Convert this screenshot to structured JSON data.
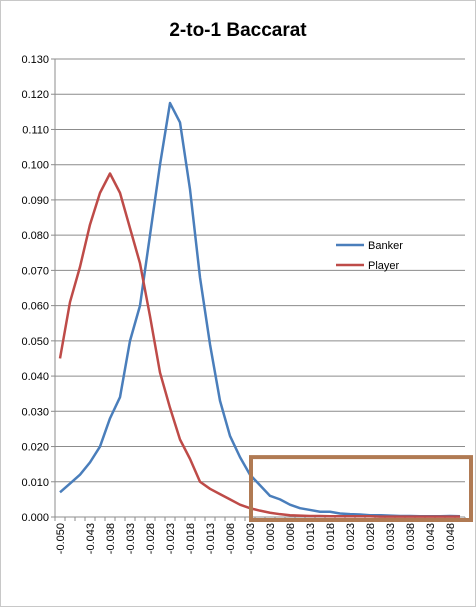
{
  "chart_data": {
    "type": "line",
    "title": "2-to-1 Baccarat",
    "xlabel": "",
    "ylabel": "",
    "ylim": [
      0,
      0.13
    ],
    "y_ticks": [
      "0.000",
      "0.010",
      "0.020",
      "0.030",
      "0.040",
      "0.050",
      "0.060",
      "0.070",
      "0.080",
      "0.090",
      "0.100",
      "0.110",
      "0.120",
      "0.130"
    ],
    "x": [
      "-0.050",
      "-0.048",
      "-0.045",
      "-0.043",
      "-0.040",
      "-0.038",
      "-0.035",
      "-0.033",
      "-0.030",
      "-0.028",
      "-0.025",
      "-0.023",
      "-0.020",
      "-0.018",
      "-0.015",
      "-0.013",
      "-0.010",
      "-0.008",
      "-0.005",
      "-0.003",
      "0.000",
      "0.003",
      "0.005",
      "0.008",
      "0.010",
      "0.013",
      "0.015",
      "0.018",
      "0.020",
      "0.023",
      "0.025",
      "0.028",
      "0.030",
      "0.033",
      "0.035",
      "0.038",
      "0.040",
      "0.043",
      "0.045",
      "0.048",
      "0.050"
    ],
    "x_tick_labels": [
      "-0.050",
      "-0.043",
      "-0.038",
      "-0.033",
      "-0.028",
      "-0.023",
      "-0.018",
      "-0.013",
      "-0.008",
      "-0.003",
      "0.003",
      "0.008",
      "0.013",
      "0.018",
      "0.023",
      "0.028",
      "0.033",
      "0.038",
      "0.043",
      "0.048"
    ],
    "grid": true,
    "legend_position": "right",
    "series": [
      {
        "name": "Banker",
        "color": "#4a7ebb",
        "values": [
          0.007,
          0.0095,
          0.012,
          0.0155,
          0.02,
          0.028,
          0.034,
          0.05,
          0.06,
          0.08,
          0.1,
          0.1175,
          0.112,
          0.093,
          0.068,
          0.049,
          0.033,
          0.023,
          0.017,
          0.012,
          0.009,
          0.006,
          0.005,
          0.0035,
          0.0025,
          0.002,
          0.0015,
          0.0015,
          0.001,
          0.0008,
          0.0007,
          0.0005,
          0.0005,
          0.0004,
          0.0003,
          0.0003,
          0.0002,
          0.0002,
          0.0002,
          0.0003,
          0.0002
        ]
      },
      {
        "name": "Player",
        "color": "#be4b48",
        "values": [
          0.045,
          0.061,
          0.071,
          0.083,
          0.092,
          0.0975,
          0.092,
          0.082,
          0.072,
          0.057,
          0.041,
          0.031,
          0.022,
          0.0165,
          0.01,
          0.008,
          0.0065,
          0.005,
          0.0035,
          0.0025,
          0.0018,
          0.0012,
          0.0008,
          0.0005,
          0.0004,
          0.0003,
          0.0003,
          0.0002,
          0.0002,
          0.0002,
          0.0002,
          0.0002,
          0.0001,
          0.0001,
          0.0001,
          0.0001,
          0.0001,
          0.0001,
          0.0001,
          0.0001,
          0.0001
        ]
      }
    ],
    "annotations": [
      {
        "type": "rectangle",
        "color": "#b07a53",
        "x_from": "0.000",
        "x_to": "0.050",
        "y_from": 0.0,
        "y_to": 0.017
      }
    ]
  }
}
